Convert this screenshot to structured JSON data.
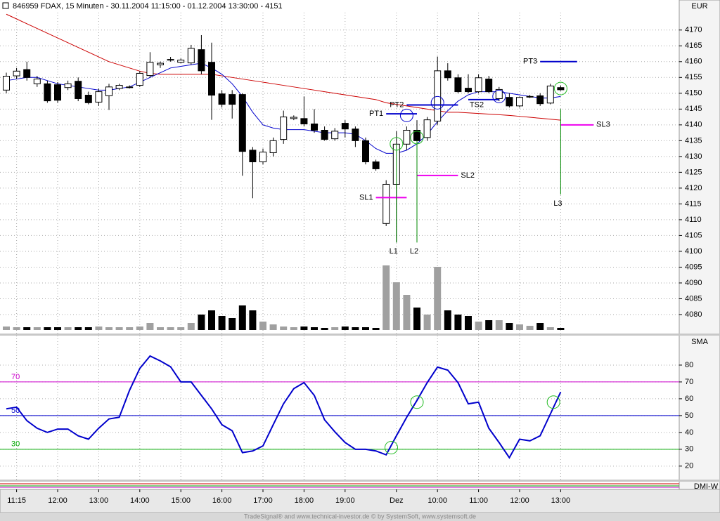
{
  "header": {
    "title": "846959 FDAX, 15 Minuten - 30.11.2004 11:15:00 - 01.12.2004 13:30:00 - 4151"
  },
  "footer": "TradeSignal® and www.technical-investor.de © by SystemSoft, www.systemsoft.de",
  "chart_data": [
    {
      "type": "candlestick",
      "axis_label": "EUR",
      "categories": [
        null,
        "11:15",
        null,
        null,
        null,
        "12:00",
        null,
        null,
        null,
        "13:00",
        null,
        null,
        null,
        "14:00",
        null,
        null,
        null,
        "15:00",
        null,
        null,
        null,
        "16:00",
        null,
        null,
        null,
        "17:00",
        null,
        null,
        null,
        "18:00",
        null,
        null,
        null,
        "19:00",
        null,
        null,
        null,
        null,
        "Dez",
        null,
        null,
        null,
        "10:00",
        null,
        null,
        null,
        "11:00",
        null,
        null,
        null,
        "12:00",
        null,
        null,
        null,
        "13:00"
      ],
      "open": [
        4151,
        4155.5,
        4157.5,
        4153,
        4153,
        4152.7,
        4151.8,
        4153.8,
        4149.4,
        4147.2,
        4149.2,
        4151.5,
        4152,
        4152.5,
        4155.6,
        4159,
        4160.5,
        4159.8,
        4159.6,
        4163.8,
        4159.8,
        4149.8,
        4149.6,
        4149.6,
        4132,
        4128.3,
        4131.2,
        4135.4,
        4142,
        4142,
        4140.3,
        4138.3,
        4135.6,
        4140.5,
        4138.7,
        4135,
        4128.3,
        4108.8,
        4121.2,
        4133.9,
        4138.3,
        4136,
        4141.2,
        4157.1,
        4154.9,
        4151.6,
        4150.5,
        4154.5,
        4148.3,
        4148.7,
        4146,
        4149,
        4149.2,
        4146.9,
        4151.8
      ],
      "high": [
        4156.5,
        4158,
        4160,
        4155.5,
        4154,
        4153.5,
        4154,
        4155,
        4150.5,
        4151.5,
        4153,
        4153,
        4152.5,
        4157,
        4163,
        4160,
        4161.5,
        4161,
        4165.3,
        4168.4,
        4166,
        4151,
        4151,
        4150,
        4133,
        4132.5,
        4136,
        4144.5,
        4143,
        4149,
        4145,
        4139.5,
        4139,
        4141.5,
        4139.5,
        4136,
        4129,
        4122.5,
        4138,
        4139.5,
        4141.5,
        4142.5,
        4161.6,
        4159.5,
        4156,
        4156,
        4156,
        4155.5,
        4152,
        4150,
        4149,
        4149.5,
        4150,
        4153,
        4152.5
      ],
      "low": [
        4150,
        4154.5,
        4154,
        4152,
        4147,
        4147,
        4151,
        4147.5,
        4146.5,
        4146,
        4144.7,
        4151,
        4151.5,
        4152,
        4155,
        4158,
        4160,
        4159.5,
        4159,
        4156,
        4141.6,
        4145.5,
        4142,
        4123.9,
        4116.8,
        4127.5,
        4130,
        4134,
        4141.5,
        4139.5,
        4137.5,
        4135,
        4135,
        4136,
        4133,
        4127.5,
        4125.5,
        4108,
        4102.8,
        4132,
        4134,
        4135,
        4140,
        4154,
        4150,
        4150,
        4150,
        4150,
        4147.5,
        4145.5,
        4145.5,
        4148.5,
        4146,
        4146.5,
        4150.8
      ],
      "close": [
        4155.4,
        4157,
        4155,
        4154.5,
        4147.6,
        4147.8,
        4153,
        4148.3,
        4147,
        4150.5,
        4152,
        4152.5,
        4152,
        4156.3,
        4159.8,
        4159.5,
        4160.7,
        4160.5,
        4164.2,
        4157.1,
        4149.4,
        4146.5,
        4146.5,
        4131.6,
        4128.3,
        4131.4,
        4135,
        4142.5,
        4142.4,
        4140.3,
        4138.3,
        4135.4,
        4138,
        4138.7,
        4135,
        4128.3,
        4126.1,
        4121.2,
        4133.9,
        4138.3,
        4135,
        4141.6,
        4157.1,
        4154.9,
        4150.5,
        4150.5,
        4154.9,
        4150.5,
        4151.2,
        4146,
        4148.7,
        4149,
        4146.7,
        4152.3,
        4151.1
      ],
      "volume": [
        5,
        4,
        4,
        4,
        4,
        4,
        4,
        4,
        4,
        5,
        4,
        4,
        4,
        5,
        10,
        4,
        4,
        4,
        10,
        22,
        28,
        20,
        17,
        35,
        28,
        12,
        8,
        5,
        4,
        5,
        4,
        3,
        4,
        5,
        4,
        4,
        3,
        92,
        68,
        50,
        32,
        22,
        90,
        28,
        22,
        20,
        12,
        14,
        14,
        10,
        8,
        6,
        10,
        4,
        3
      ],
      "up_color": "#ffffff",
      "down_color": "#000000",
      "volume_up_color": "#a0a0a0",
      "volume_down_color": "#000000",
      "overlays": [
        {
          "color": "#cc0000",
          "values": [
            4175,
            4173.5,
            4172,
            4170.5,
            4169,
            4167.5,
            4166,
            4164.5,
            4163,
            4161.5,
            4160,
            4159,
            4158,
            4157,
            4156.3,
            4156,
            4156,
            4156,
            4156,
            4156,
            4156,
            4155.5,
            4155,
            4154.5,
            4154,
            4153.5,
            4153,
            4152.5,
            4152,
            4151.5,
            4151,
            4150.5,
            4150,
            4149.5,
            4149,
            4148.5,
            4148,
            4147,
            4146.5,
            4146,
            4145.5,
            4145,
            4144.5,
            4144,
            4144,
            4143.8,
            4143.6,
            4143.4,
            4143.2,
            4143,
            4142.7,
            4142.4,
            4142.1,
            4141.8,
            4141.5
          ]
        },
        {
          "color": "#0000cc",
          "values": [
            4154,
            4154.5,
            4155,
            4155,
            4154,
            4153,
            4152.5,
            4152,
            4151.5,
            4151,
            4151,
            4151.5,
            4152,
            4153.5,
            4155,
            4156.5,
            4158,
            4158.5,
            4159,
            4159.5,
            4158,
            4156,
            4153,
            4149,
            4144,
            4140,
            4139,
            4138.5,
            4138.5,
            4138.5,
            4138,
            4137.5,
            4137.5,
            4137.5,
            4137,
            4135,
            4132.5,
            4131,
            4131,
            4132,
            4134,
            4137,
            4141,
            4144.5,
            4147.5,
            4149.5,
            4150.5,
            4150.5,
            4150.5,
            4150,
            4149.5,
            4149,
            4148.5,
            4148.5,
            4149
          ]
        }
      ],
      "levels": [
        {
          "label": "PT1",
          "value": 4143.5,
          "from": 37,
          "to": 40,
          "color": "#0000cc",
          "side": "left"
        },
        {
          "label": "PT2",
          "value": 4146.3,
          "from": 39,
          "to": 44,
          "color": "#0000cc",
          "side": "left"
        },
        {
          "label": "PT3",
          "value": 4160,
          "from": 52,
          "to": 55.6,
          "color": "#0000cc",
          "side": "left"
        },
        {
          "label": "TS2",
          "value": 4148,
          "from": 45,
          "to": 48,
          "color": "#0000cc",
          "side": "below"
        },
        {
          "label": "SL1",
          "value": 4117,
          "from": 36,
          "to": 39,
          "color": "#ee00ee",
          "side": "left"
        },
        {
          "label": "SL2",
          "value": 4124,
          "from": 40,
          "to": 44,
          "color": "#ee00ee",
          "side": "right"
        },
        {
          "label": "SL3",
          "value": 4140,
          "from": 54,
          "to": 57.2,
          "color": "#ee00ee",
          "side": "right"
        }
      ],
      "verticals": [
        {
          "label": "L1",
          "index": 38,
          "top": 4134,
          "bottom": 4102.8,
          "color": "#008800"
        },
        {
          "label": "L2",
          "index": 40,
          "top": 4135,
          "bottom": 4102.8,
          "color": "#008800"
        },
        {
          "label": "L3",
          "index": 54,
          "top": 4145,
          "bottom": 4118,
          "color": "#008800"
        }
      ],
      "markers": [
        {
          "index": 38,
          "value": 4134,
          "color": "#22bb22"
        },
        {
          "index": 40,
          "value": 4136,
          "color": "#22bb22"
        },
        {
          "index": 54,
          "value": 4151.5,
          "color": "#22bb22"
        },
        {
          "index": 39,
          "value": 4143,
          "color": "#0000cc"
        },
        {
          "index": 42,
          "value": 4147,
          "color": "#0000cc"
        },
        {
          "index": 48,
          "value": 4149,
          "color": "#0000cc"
        }
      ],
      "ylim": [
        4074,
        4179.5
      ],
      "yticks": [
        4080,
        4085,
        4090,
        4095,
        4100,
        4105,
        4110,
        4115,
        4120,
        4125,
        4130,
        4135,
        4140,
        4145,
        4150,
        4155,
        4160,
        4165,
        4170
      ],
      "grid": true
    },
    {
      "type": "line",
      "axis_label": "SMA",
      "color": "#0000cc",
      "values": [
        54,
        55,
        47,
        42.5,
        40,
        42,
        42,
        38,
        36,
        42.5,
        48,
        49,
        65,
        78,
        85.4,
        82.5,
        79,
        70,
        70,
        62,
        54,
        44.6,
        41,
        28,
        29,
        32,
        44.6,
        57,
        66,
        69.6,
        62,
        47.5,
        40.4,
        34,
        30,
        30,
        29,
        26.7,
        38,
        49,
        59,
        69.6,
        78.8,
        77,
        69.6,
        57,
        58,
        42.5,
        34,
        25,
        36,
        35,
        38,
        51,
        64
      ],
      "levels": [
        {
          "value": 70,
          "color": "#cc00cc"
        },
        {
          "value": 50,
          "color": "#0000cc"
        },
        {
          "value": 30,
          "color": "#00aa00"
        }
      ],
      "markers": [
        {
          "index": 37.5,
          "value": 31,
          "color": "#22bb22"
        },
        {
          "index": 40,
          "value": 58,
          "color": "#22bb22"
        },
        {
          "index": 53.3,
          "value": 58,
          "color": "#22bb22"
        }
      ],
      "ylim": [
        12,
        97.5
      ],
      "yticks": [
        20,
        30,
        40,
        50,
        60,
        70,
        80
      ],
      "grid": true
    },
    {
      "type": "indicator",
      "axis_label": "DMI-W"
    }
  ]
}
